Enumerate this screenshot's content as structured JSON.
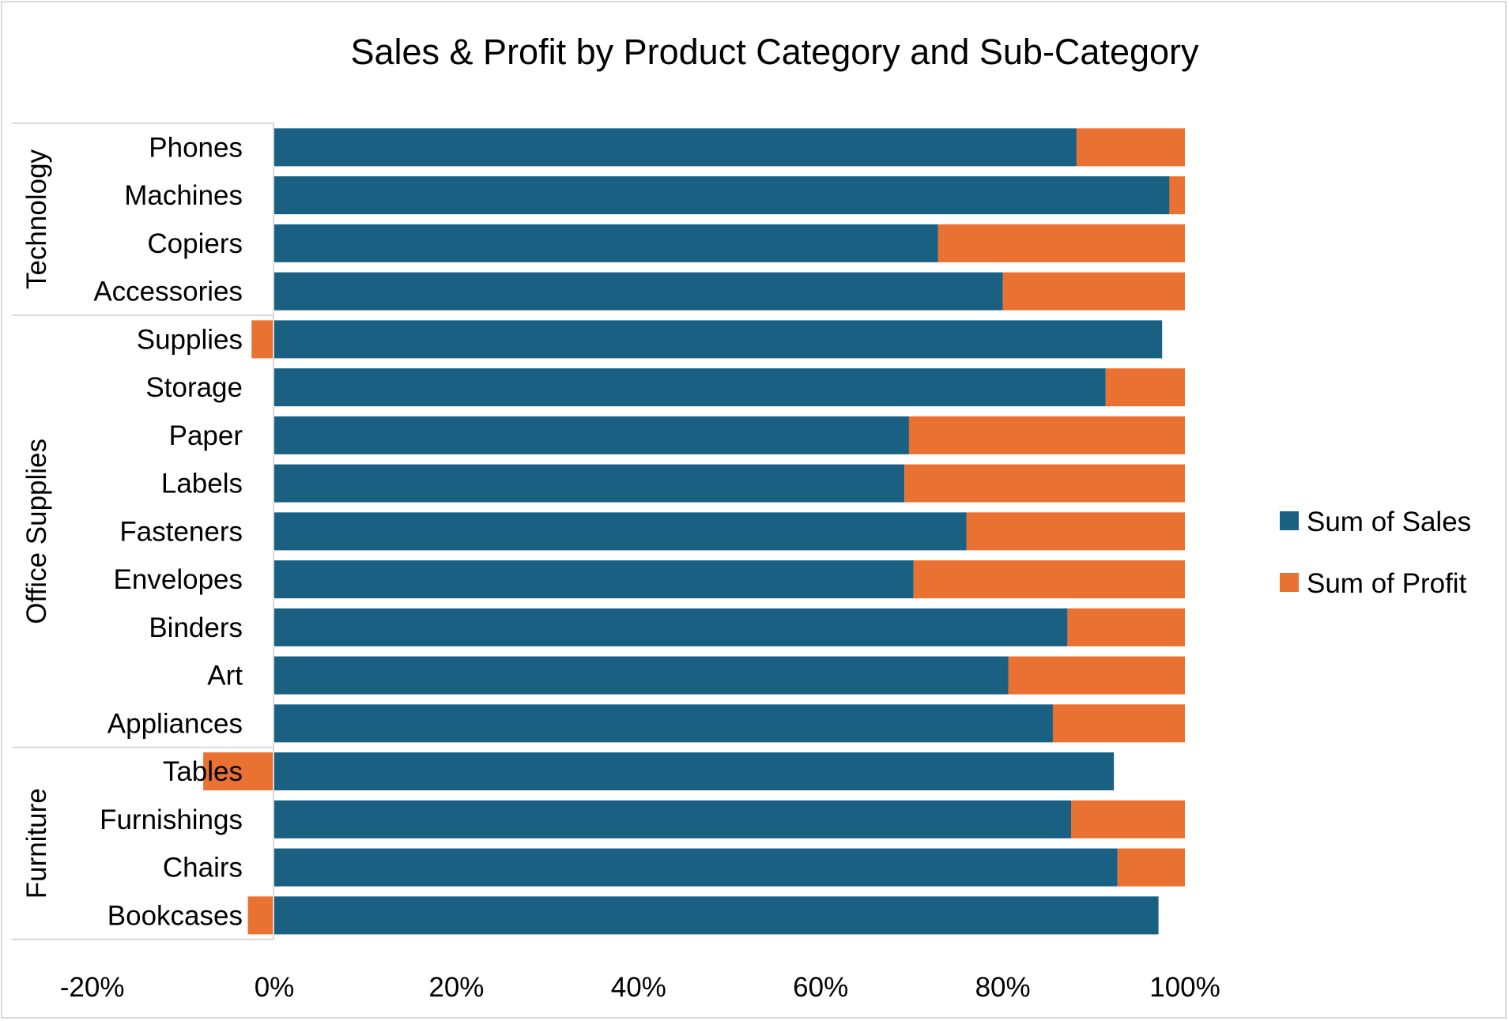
{
  "chart_data": {
    "type": "bar",
    "orientation": "horizontal",
    "stacked": "100%",
    "title": "Sales & Profit by Product Category and Sub-Category",
    "xlabel": "",
    "ylabel": "",
    "xlim": [
      -20,
      100
    ],
    "x_ticks": [
      "-20%",
      "0%",
      "20%",
      "40%",
      "60%",
      "80%",
      "100%"
    ],
    "x_tick_values": [
      -20,
      0,
      20,
      40,
      60,
      80,
      100
    ],
    "grid": false,
    "legend_position": "right",
    "groups": [
      {
        "name": "Technology",
        "categories": [
          "Phones",
          "Machines",
          "Copiers",
          "Accessories"
        ]
      },
      {
        "name": "Office Supplies",
        "categories": [
          "Supplies",
          "Storage",
          "Paper",
          "Labels",
          "Fasteners",
          "Envelopes",
          "Binders",
          "Art",
          "Appliances"
        ]
      },
      {
        "name": "Furniture",
        "categories": [
          "Tables",
          "Furnishings",
          "Chairs",
          "Bookcases"
        ]
      }
    ],
    "categories": [
      "Phones",
      "Machines",
      "Copiers",
      "Accessories",
      "Supplies",
      "Storage",
      "Paper",
      "Labels",
      "Fasteners",
      "Envelopes",
      "Binders",
      "Art",
      "Appliances",
      "Tables",
      "Furnishings",
      "Chairs",
      "Bookcases"
    ],
    "series": [
      {
        "name": "Sum of Sales",
        "color": "#1a6082",
        "values": [
          88.1,
          98.3,
          72.9,
          80.0,
          97.5,
          91.3,
          69.7,
          69.2,
          76.0,
          70.2,
          87.1,
          80.6,
          85.5,
          92.2,
          87.5,
          92.6,
          97.1
        ]
      },
      {
        "name": "Sum of Profit",
        "color": "#e97132",
        "values": [
          11.9,
          1.7,
          27.1,
          20.0,
          -2.5,
          8.7,
          30.3,
          30.8,
          24.0,
          29.8,
          12.9,
          19.4,
          14.5,
          -7.8,
          12.5,
          7.4,
          -2.9
        ]
      }
    ]
  }
}
